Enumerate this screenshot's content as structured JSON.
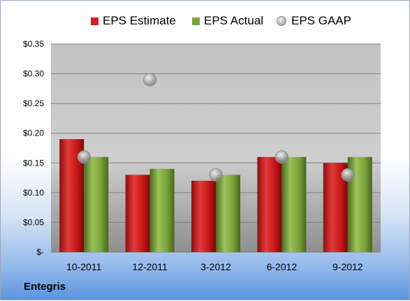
{
  "company": "Entegris",
  "chart_data": {
    "type": "bar",
    "categories": [
      "10-2011",
      "12-2011",
      "3-2012",
      "6-2012",
      "9-2012"
    ],
    "series": [
      {
        "name": "EPS Estimate",
        "kind": "bar",
        "color": "#d21f1f",
        "values": [
          0.19,
          0.13,
          0.12,
          0.16,
          0.15
        ]
      },
      {
        "name": "EPS Actual",
        "kind": "bar",
        "color": "#7aa23a",
        "values": [
          0.16,
          0.14,
          0.13,
          0.16,
          0.16
        ]
      },
      {
        "name": "EPS GAAP",
        "kind": "marker",
        "color": "#a8a8a8",
        "values": [
          0.16,
          0.29,
          0.13,
          0.16,
          0.13
        ]
      }
    ],
    "ylim": [
      0,
      0.35
    ],
    "yticks": [
      0,
      0.05,
      0.1,
      0.15,
      0.2,
      0.25,
      0.3,
      0.35
    ],
    "ytick_labels": [
      "$-",
      "$0.05",
      "$0.10",
      "$0.15",
      "$0.20",
      "$0.25",
      "$0.30",
      "$0.35"
    ],
    "grid": true,
    "legend_position": "top"
  }
}
